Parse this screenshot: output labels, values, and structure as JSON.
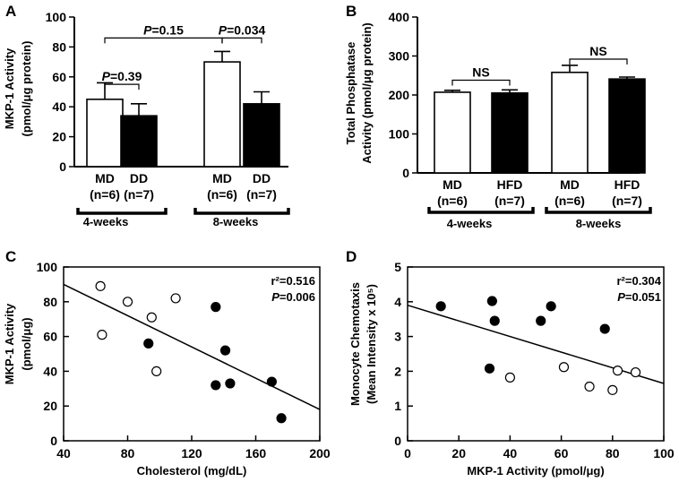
{
  "chart_data": [
    {
      "panel": "A",
      "type": "bar",
      "ylabel_line1": "MKP-1 Activity",
      "ylabel_line2": "(pmol/μg protein)",
      "ylim": [
        0,
        100
      ],
      "yticks": [
        "0",
        "20",
        "40",
        "60",
        "80",
        "100"
      ],
      "bars": [
        {
          "group": "MD",
          "n": "(n=6)",
          "value": 45,
          "error": 11,
          "fill": "#ffffff"
        },
        {
          "group": "DD",
          "n": "(n=7)",
          "value": 34,
          "error": 8,
          "fill": "#000000"
        },
        {
          "group": "MD",
          "n": "(n=6)",
          "value": 70,
          "error": 7,
          "fill": "#ffffff"
        },
        {
          "group": "DD",
          "n": "(n=7)",
          "value": 42,
          "error": 8,
          "fill": "#000000"
        }
      ],
      "periods": [
        "4-weeks",
        "8-weeks"
      ],
      "comparisons": [
        {
          "from": 0,
          "to": 1,
          "label_italic": "P",
          "label_rest": "=0.39",
          "level": 55
        },
        {
          "from": 0,
          "to": 2,
          "label_italic": "P",
          "label_rest": "=0.15",
          "level": 86
        },
        {
          "from": 2,
          "to": 3,
          "label_italic": "P",
          "label_rest": "=0.034",
          "level": 86
        }
      ]
    },
    {
      "panel": "B",
      "type": "bar",
      "ylabel_line1": "Total Phosphatase",
      "ylabel_line2": "Activity (pmol/μg protein)",
      "ylim": [
        0,
        400
      ],
      "yticks": [
        "0",
        "100",
        "200",
        "300",
        "400"
      ],
      "bars": [
        {
          "group": "MD",
          "n": "(n=6)",
          "value": 207,
          "error": 5,
          "fill": "#ffffff"
        },
        {
          "group": "HFD",
          "n": "(n=7)",
          "value": 205,
          "error": 8,
          "fill": "#000000"
        },
        {
          "group": "MD",
          "n": "(n=6)",
          "value": 258,
          "error": 18,
          "fill": "#ffffff"
        },
        {
          "group": "HFD",
          "n": "(n=7)",
          "value": 241,
          "error": 5,
          "fill": "#000000"
        }
      ],
      "periods": [
        "4-weeks",
        "8-weeks"
      ],
      "comparisons": [
        {
          "from": 0,
          "to": 1,
          "label_italic": "",
          "label_rest": "NS",
          "level": 238
        },
        {
          "from": 2,
          "to": 3,
          "label_italic": "",
          "label_rest": "NS",
          "level": 292
        }
      ]
    },
    {
      "panel": "C",
      "type": "scatter",
      "xlabel": "Cholesterol (mg/dL)",
      "ylabel_line1": "MKP-1 Activity",
      "ylabel_line2": "(pmol/μg)",
      "xlim": [
        40,
        200
      ],
      "ylim": [
        0,
        100
      ],
      "xticks": [
        "40",
        "80",
        "120",
        "160",
        "200"
      ],
      "yticks": [
        "0",
        "20",
        "40",
        "60",
        "80",
        "100"
      ],
      "stat_line1": "r²=0.516",
      "stat_line2_italic": "P",
      "stat_line2_rest": "=0.006",
      "fit": {
        "x": [
          40,
          200
        ],
        "y": [
          90,
          18
        ]
      },
      "points": [
        {
          "x": 63,
          "y": 89,
          "filled": false
        },
        {
          "x": 64,
          "y": 61,
          "filled": false
        },
        {
          "x": 80,
          "y": 80,
          "filled": false
        },
        {
          "x": 95,
          "y": 71,
          "filled": false
        },
        {
          "x": 98,
          "y": 40,
          "filled": false
        },
        {
          "x": 110,
          "y": 82,
          "filled": false
        },
        {
          "x": 93,
          "y": 56,
          "filled": true
        },
        {
          "x": 135,
          "y": 77,
          "filled": true
        },
        {
          "x": 135,
          "y": 32,
          "filled": true
        },
        {
          "x": 141,
          "y": 52,
          "filled": true
        },
        {
          "x": 144,
          "y": 33,
          "filled": true
        },
        {
          "x": 170,
          "y": 34,
          "filled": true
        },
        {
          "x": 176,
          "y": 13,
          "filled": true
        }
      ]
    },
    {
      "panel": "D",
      "type": "scatter",
      "xlabel": "MKP-1 Activity (pmol/μg)",
      "ylabel_line1": "Monocyte Chemotaxis",
      "ylabel_line2": "(Mean Intensity x 10⁵)",
      "xlim": [
        0,
        100
      ],
      "ylim": [
        0,
        5
      ],
      "xticks": [
        "0",
        "20",
        "40",
        "60",
        "80",
        "100"
      ],
      "yticks": [
        "0",
        "1",
        "2",
        "3",
        "4",
        "5"
      ],
      "stat_line1": "r²=0.304",
      "stat_line2_italic": "P",
      "stat_line2_rest": "=0.051",
      "fit": {
        "x": [
          0,
          100
        ],
        "y": [
          3.9,
          1.65
        ]
      },
      "points": [
        {
          "x": 13,
          "y": 3.87,
          "filled": true
        },
        {
          "x": 33,
          "y": 4.02,
          "filled": true
        },
        {
          "x": 34,
          "y": 3.45,
          "filled": true
        },
        {
          "x": 32,
          "y": 2.08,
          "filled": true
        },
        {
          "x": 52,
          "y": 3.45,
          "filled": true
        },
        {
          "x": 56,
          "y": 3.87,
          "filled": true
        },
        {
          "x": 77,
          "y": 3.22,
          "filled": true
        },
        {
          "x": 40,
          "y": 1.82,
          "filled": false
        },
        {
          "x": 61,
          "y": 2.12,
          "filled": false
        },
        {
          "x": 71,
          "y": 1.56,
          "filled": false
        },
        {
          "x": 80,
          "y": 1.46,
          "filled": false
        },
        {
          "x": 82,
          "y": 2.02,
          "filled": false
        },
        {
          "x": 89,
          "y": 1.97,
          "filled": false
        }
      ]
    }
  ],
  "panel_labels": [
    "A",
    "B",
    "C",
    "D"
  ]
}
